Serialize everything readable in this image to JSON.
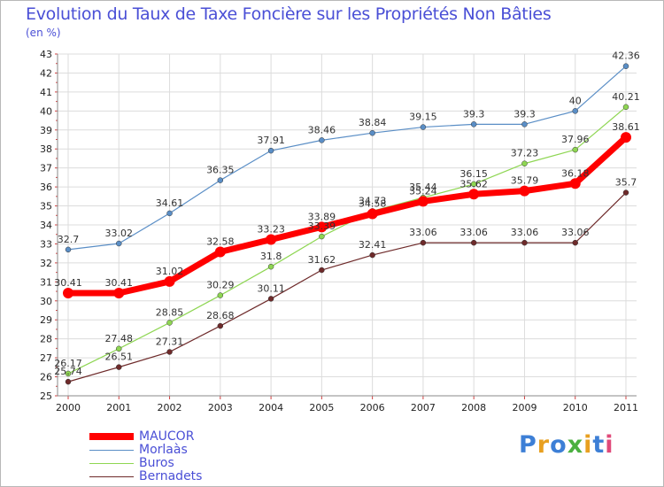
{
  "title": "Evolution du Taux de Taxe Foncière sur les Propriétés Non Bâties",
  "subtitle": "(en %)",
  "brand": "Proxiti",
  "chart_data": {
    "type": "line",
    "x": [
      "2000",
      "2001",
      "2002",
      "2003",
      "2004",
      "2005",
      "2006",
      "2007",
      "2008",
      "2009",
      "2010",
      "2011"
    ],
    "ylim": [
      25,
      43
    ],
    "yticks": [
      25,
      26,
      27,
      28,
      29,
      30,
      31,
      32,
      33,
      34,
      35,
      36,
      37,
      38,
      39,
      40,
      41,
      42,
      43
    ],
    "grid": true,
    "legend_position": "bottom-left",
    "series": [
      {
        "name": "MAUCOR",
        "color": "#ff0000",
        "values": [
          30.41,
          30.41,
          31.02,
          32.58,
          33.23,
          33.89,
          34.58,
          35.24,
          35.62,
          35.79,
          36.18,
          38.61
        ],
        "labels": [
          "30.41",
          "30.41",
          "31.02",
          "32.58",
          "33.23",
          "33.89",
          "34.58",
          "35.24",
          "35.62",
          "35.79",
          "36.18",
          "38.61"
        ]
      },
      {
        "name": "Morlaàs",
        "color": "#5a8ec6",
        "values": [
          32.7,
          33.02,
          34.61,
          36.35,
          37.91,
          38.46,
          38.84,
          39.15,
          39.3,
          39.3,
          40,
          42.36
        ],
        "labels": [
          "32.7",
          "33.02",
          "34.61",
          "36.35",
          "37.91",
          "38.46",
          "38.84",
          "39.15",
          "39.3",
          "39.3",
          "40",
          "42.36"
        ]
      },
      {
        "name": "Buros",
        "color": "#8ed652",
        "values": [
          26.17,
          27.48,
          28.85,
          30.29,
          31.8,
          33.39,
          34.73,
          35.44,
          36.15,
          37.23,
          37.96,
          40.21
        ],
        "labels": [
          "26.17",
          "27.48",
          "28.85",
          "30.29",
          "31.8",
          "33.39",
          "34.73",
          "35.44",
          "36.15",
          "37.23",
          "37.96",
          "40.21"
        ]
      },
      {
        "name": "Bernadets",
        "color": "#6e2a2a",
        "values": [
          25.74,
          26.51,
          27.31,
          28.68,
          30.11,
          31.62,
          32.41,
          33.06,
          33.06,
          33.06,
          33.06,
          35.7
        ],
        "labels": [
          "25.74",
          "26.51",
          "27.31",
          "28.68",
          "30.11",
          "31.62",
          "32.41",
          "33.06",
          "33.06",
          "33.06",
          "33.06",
          "35.7"
        ]
      }
    ]
  }
}
